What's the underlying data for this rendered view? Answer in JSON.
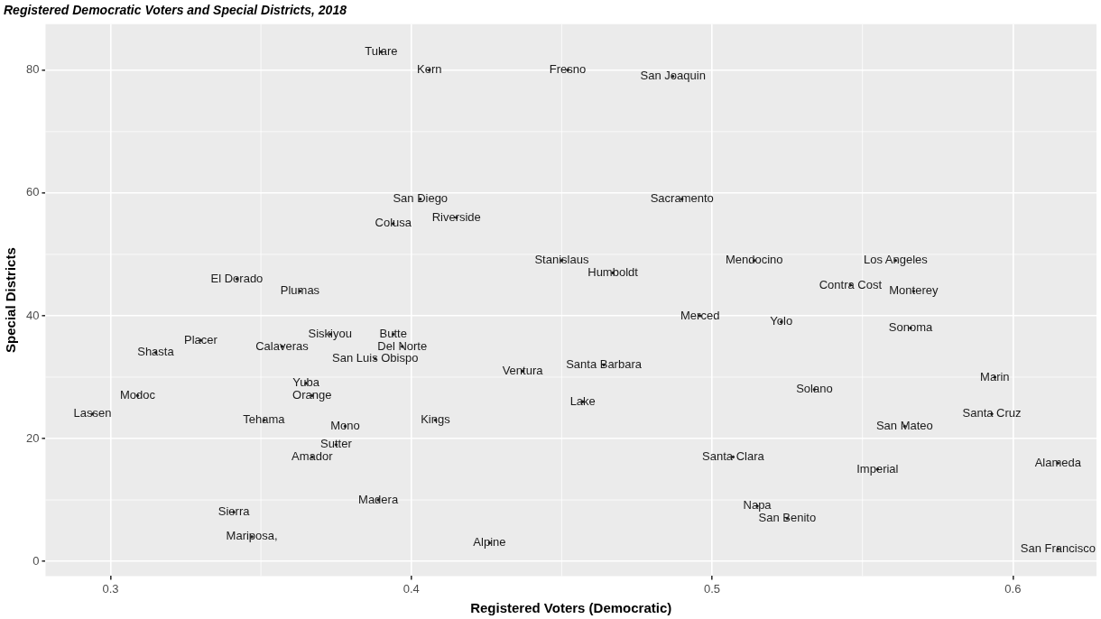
{
  "chart_data": {
    "type": "scatter",
    "title": "Registered Democratic Voters and Special Districts, 2018",
    "xlabel": "Registered Voters (Democratic)",
    "ylabel": "Special Districts",
    "xlim": [
      0.2784,
      0.6278
    ],
    "xticks": [
      0.3,
      0.4,
      0.5,
      0.6
    ],
    "ylim": [
      -2.4,
      87.5
    ],
    "yticks": [
      0,
      20,
      40,
      60,
      80
    ],
    "grid": true,
    "series": [
      {
        "color": "#1a1a1a",
        "x": [
          0.39,
          0.406,
          0.452,
          0.487,
          0.403,
          0.415,
          0.394,
          0.49,
          0.45,
          0.467,
          0.514,
          0.561,
          0.546,
          0.567,
          0.342,
          0.363,
          0.496,
          0.523,
          0.566,
          0.373,
          0.394,
          0.397,
          0.357,
          0.33,
          0.315,
          0.388,
          0.437,
          0.464,
          0.594,
          0.534,
          0.365,
          0.367,
          0.309,
          0.457,
          0.294,
          0.593,
          0.351,
          0.408,
          0.378,
          0.564,
          0.375,
          0.367,
          0.507,
          0.555,
          0.615,
          0.389,
          0.515,
          0.525,
          0.341,
          0.347,
          0.426,
          0.615
        ],
        "values": [
          83,
          80,
          80,
          79,
          59,
          56,
          55,
          59,
          49,
          47,
          49,
          49,
          45,
          44,
          46,
          44,
          40,
          39,
          38,
          37,
          37,
          35,
          35,
          36,
          34,
          33,
          31,
          32,
          30,
          28,
          29,
          27,
          27,
          26,
          24,
          24,
          23,
          23,
          22,
          22,
          19,
          17,
          17,
          15,
          16,
          10,
          9,
          7,
          8,
          4,
          3,
          2
        ],
        "value_labels": [
          "Tulare",
          "Kern",
          "Fresno",
          "San Joaquin",
          "San Diego",
          "Riverside",
          "Colusa",
          "Sacramento",
          "Stanislaus",
          "Humboldt",
          "Mendocino",
          "Los Angeles",
          "Contra Cost",
          "Monterey",
          "El Dorado",
          "Plumas",
          "Merced",
          "Yolo",
          "Sonoma",
          "Siskiyou",
          "Butte",
          "Del Norte",
          "Calaveras",
          "Placer",
          "Shasta",
          "San Luis Obispo",
          "Ventura",
          "Santa Barbara",
          "Marin",
          "Solano",
          "Yuba",
          "Orange",
          "Modoc",
          "Lake",
          "Lassen",
          "Santa Cruz",
          "Tehama",
          "Kings",
          "Mono",
          "San Mateo",
          "Sutter",
          "Amador",
          "Santa Clara",
          "Imperial",
          "Alameda",
          "Madera",
          "Napa",
          "San Benito",
          "Sierra",
          "Mariposa,",
          "Alpine",
          "San Francisco"
        ]
      }
    ]
  }
}
